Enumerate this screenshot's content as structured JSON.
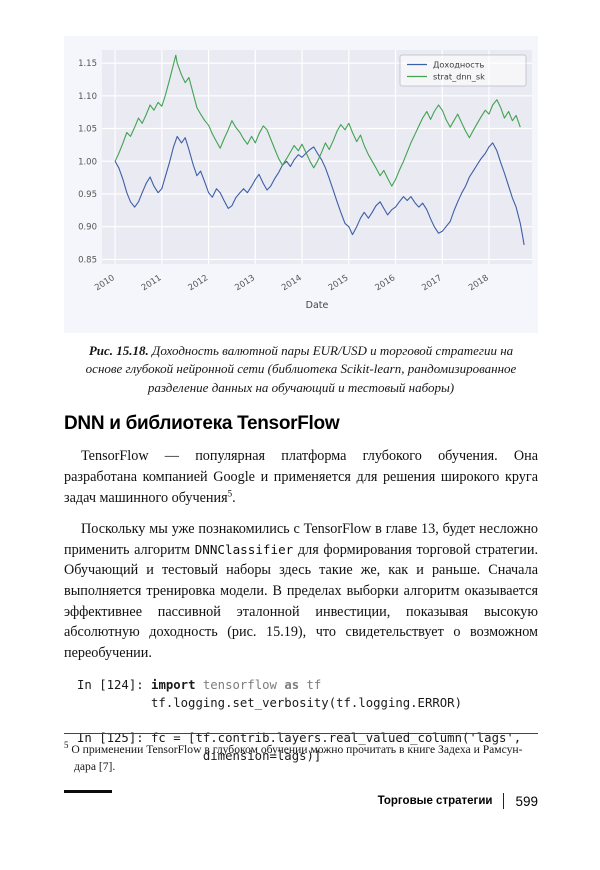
{
  "figure": {
    "caption": {
      "label": "Рис. 15.18.",
      "text": " Доходность валютной пары EUR/USD и торговой стратегии на основе глубокой нейронной сети (библиотека Scikit-learn, рандомизированное разделение данных на обучающий и тестовый наборы)"
    }
  },
  "chart_data": {
    "type": "line",
    "title": "",
    "xlabel": "Date",
    "ylabel": "",
    "xlim": [
      2010,
      2018.8
    ],
    "ylim": [
      0.85,
      1.15
    ],
    "yticks": [
      0.85,
      0.9,
      0.95,
      1.0,
      1.05,
      1.1,
      1.15
    ],
    "xticks": [
      2010,
      2011,
      2012,
      2013,
      2014,
      2015,
      2016,
      2017,
      2018
    ],
    "grid": true,
    "legend_position": "upper right",
    "plot_background": "#eaeaf2",
    "series": [
      {
        "name": "Доходность",
        "color": "#3d5fa6",
        "points": [
          [
            2010.0,
            1.0
          ],
          [
            2010.08,
            0.99
          ],
          [
            2010.17,
            0.972
          ],
          [
            2010.25,
            0.952
          ],
          [
            2010.33,
            0.938
          ],
          [
            2010.42,
            0.93
          ],
          [
            2010.5,
            0.938
          ],
          [
            2010.58,
            0.952
          ],
          [
            2010.67,
            0.967
          ],
          [
            2010.75,
            0.976
          ],
          [
            2010.83,
            0.962
          ],
          [
            2010.92,
            0.952
          ],
          [
            2011.0,
            0.958
          ],
          [
            2011.08,
            0.978
          ],
          [
            2011.17,
            1.0
          ],
          [
            2011.25,
            1.022
          ],
          [
            2011.33,
            1.038
          ],
          [
            2011.42,
            1.028
          ],
          [
            2011.5,
            1.036
          ],
          [
            2011.58,
            1.018
          ],
          [
            2011.67,
            0.995
          ],
          [
            2011.75,
            0.978
          ],
          [
            2011.83,
            0.985
          ],
          [
            2011.92,
            0.968
          ],
          [
            2012.0,
            0.952
          ],
          [
            2012.08,
            0.945
          ],
          [
            2012.17,
            0.958
          ],
          [
            2012.25,
            0.952
          ],
          [
            2012.33,
            0.94
          ],
          [
            2012.42,
            0.928
          ],
          [
            2012.5,
            0.932
          ],
          [
            2012.58,
            0.944
          ],
          [
            2012.67,
            0.952
          ],
          [
            2012.75,
            0.958
          ],
          [
            2012.83,
            0.952
          ],
          [
            2012.92,
            0.962
          ],
          [
            2013.0,
            0.972
          ],
          [
            2013.08,
            0.98
          ],
          [
            2013.17,
            0.966
          ],
          [
            2013.25,
            0.956
          ],
          [
            2013.33,
            0.962
          ],
          [
            2013.42,
            0.974
          ],
          [
            2013.5,
            0.983
          ],
          [
            2013.58,
            0.994
          ],
          [
            2013.67,
            1.0
          ],
          [
            2013.75,
            0.992
          ],
          [
            2013.83,
            1.002
          ],
          [
            2013.92,
            1.01
          ],
          [
            2014.0,
            1.006
          ],
          [
            2014.08,
            1.012
          ],
          [
            2014.17,
            1.018
          ],
          [
            2014.25,
            1.022
          ],
          [
            2014.33,
            1.012
          ],
          [
            2014.42,
            1.002
          ],
          [
            2014.5,
            0.99
          ],
          [
            2014.58,
            0.974
          ],
          [
            2014.67,
            0.955
          ],
          [
            2014.75,
            0.938
          ],
          [
            2014.83,
            0.922
          ],
          [
            2014.92,
            0.905
          ],
          [
            2015.0,
            0.9
          ],
          [
            2015.08,
            0.888
          ],
          [
            2015.17,
            0.9
          ],
          [
            2015.25,
            0.913
          ],
          [
            2015.33,
            0.922
          ],
          [
            2015.42,
            0.913
          ],
          [
            2015.5,
            0.922
          ],
          [
            2015.58,
            0.932
          ],
          [
            2015.67,
            0.938
          ],
          [
            2015.75,
            0.928
          ],
          [
            2015.83,
            0.918
          ],
          [
            2015.92,
            0.926
          ],
          [
            2016.0,
            0.93
          ],
          [
            2016.08,
            0.938
          ],
          [
            2016.17,
            0.946
          ],
          [
            2016.25,
            0.94
          ],
          [
            2016.33,
            0.946
          ],
          [
            2016.42,
            0.936
          ],
          [
            2016.5,
            0.93
          ],
          [
            2016.58,
            0.936
          ],
          [
            2016.67,
            0.926
          ],
          [
            2016.75,
            0.912
          ],
          [
            2016.83,
            0.9
          ],
          [
            2016.92,
            0.89
          ],
          [
            2017.0,
            0.893
          ],
          [
            2017.08,
            0.9
          ],
          [
            2017.17,
            0.908
          ],
          [
            2017.25,
            0.924
          ],
          [
            2017.33,
            0.938
          ],
          [
            2017.42,
            0.952
          ],
          [
            2017.5,
            0.962
          ],
          [
            2017.58,
            0.976
          ],
          [
            2017.67,
            0.986
          ],
          [
            2017.75,
            0.995
          ],
          [
            2017.83,
            1.004
          ],
          [
            2017.92,
            1.012
          ],
          [
            2018.0,
            1.022
          ],
          [
            2018.08,
            1.028
          ],
          [
            2018.17,
            1.016
          ],
          [
            2018.25,
            0.998
          ],
          [
            2018.33,
            0.982
          ],
          [
            2018.42,
            0.962
          ],
          [
            2018.5,
            0.944
          ],
          [
            2018.58,
            0.93
          ],
          [
            2018.67,
            0.905
          ],
          [
            2018.72,
            0.885
          ],
          [
            2018.75,
            0.872
          ]
        ]
      },
      {
        "name": "strat_dnn_sk",
        "color": "#41a351",
        "points": [
          [
            2010.0,
            1.0
          ],
          [
            2010.08,
            1.012
          ],
          [
            2010.17,
            1.028
          ],
          [
            2010.25,
            1.044
          ],
          [
            2010.33,
            1.038
          ],
          [
            2010.42,
            1.052
          ],
          [
            2010.5,
            1.066
          ],
          [
            2010.58,
            1.058
          ],
          [
            2010.67,
            1.072
          ],
          [
            2010.75,
            1.086
          ],
          [
            2010.83,
            1.078
          ],
          [
            2010.92,
            1.09
          ],
          [
            2011.0,
            1.084
          ],
          [
            2011.08,
            1.102
          ],
          [
            2011.17,
            1.126
          ],
          [
            2011.25,
            1.148
          ],
          [
            2011.3,
            1.162
          ],
          [
            2011.33,
            1.15
          ],
          [
            2011.42,
            1.132
          ],
          [
            2011.5,
            1.12
          ],
          [
            2011.58,
            1.128
          ],
          [
            2011.67,
            1.104
          ],
          [
            2011.75,
            1.082
          ],
          [
            2011.83,
            1.072
          ],
          [
            2011.92,
            1.062
          ],
          [
            2012.0,
            1.055
          ],
          [
            2012.08,
            1.042
          ],
          [
            2012.17,
            1.03
          ],
          [
            2012.25,
            1.02
          ],
          [
            2012.33,
            1.034
          ],
          [
            2012.42,
            1.048
          ],
          [
            2012.5,
            1.062
          ],
          [
            2012.58,
            1.052
          ],
          [
            2012.67,
            1.044
          ],
          [
            2012.75,
            1.034
          ],
          [
            2012.83,
            1.026
          ],
          [
            2012.92,
            1.038
          ],
          [
            2013.0,
            1.028
          ],
          [
            2013.08,
            1.042
          ],
          [
            2013.17,
            1.054
          ],
          [
            2013.25,
            1.048
          ],
          [
            2013.33,
            1.034
          ],
          [
            2013.42,
            1.018
          ],
          [
            2013.5,
            1.004
          ],
          [
            2013.58,
            0.994
          ],
          [
            2013.67,
            1.004
          ],
          [
            2013.75,
            1.014
          ],
          [
            2013.83,
            1.024
          ],
          [
            2013.92,
            1.016
          ],
          [
            2014.0,
            1.026
          ],
          [
            2014.08,
            1.014
          ],
          [
            2014.17,
            1.0
          ],
          [
            2014.25,
            0.99
          ],
          [
            2014.33,
            1.0
          ],
          [
            2014.42,
            1.014
          ],
          [
            2014.5,
            1.028
          ],
          [
            2014.58,
            1.018
          ],
          [
            2014.67,
            1.032
          ],
          [
            2014.75,
            1.046
          ],
          [
            2014.83,
            1.056
          ],
          [
            2014.92,
            1.048
          ],
          [
            2015.0,
            1.058
          ],
          [
            2015.08,
            1.044
          ],
          [
            2015.17,
            1.03
          ],
          [
            2015.25,
            1.04
          ],
          [
            2015.33,
            1.024
          ],
          [
            2015.42,
            1.01
          ],
          [
            2015.5,
            1.0
          ],
          [
            2015.58,
            0.99
          ],
          [
            2015.67,
            0.978
          ],
          [
            2015.75,
            0.986
          ],
          [
            2015.83,
            0.974
          ],
          [
            2015.92,
            0.962
          ],
          [
            2016.0,
            0.972
          ],
          [
            2016.08,
            0.986
          ],
          [
            2016.17,
            1.0
          ],
          [
            2016.25,
            1.014
          ],
          [
            2016.33,
            1.028
          ],
          [
            2016.42,
            1.042
          ],
          [
            2016.5,
            1.054
          ],
          [
            2016.58,
            1.066
          ],
          [
            2016.67,
            1.076
          ],
          [
            2016.75,
            1.064
          ],
          [
            2016.83,
            1.076
          ],
          [
            2016.92,
            1.086
          ],
          [
            2017.0,
            1.078
          ],
          [
            2017.08,
            1.064
          ],
          [
            2017.17,
            1.052
          ],
          [
            2017.25,
            1.062
          ],
          [
            2017.33,
            1.072
          ],
          [
            2017.42,
            1.058
          ],
          [
            2017.5,
            1.046
          ],
          [
            2017.58,
            1.036
          ],
          [
            2017.67,
            1.048
          ],
          [
            2017.75,
            1.058
          ],
          [
            2017.83,
            1.068
          ],
          [
            2017.92,
            1.078
          ],
          [
            2018.0,
            1.072
          ],
          [
            2018.08,
            1.086
          ],
          [
            2018.17,
            1.094
          ],
          [
            2018.25,
            1.082
          ],
          [
            2018.33,
            1.066
          ],
          [
            2018.42,
            1.076
          ],
          [
            2018.5,
            1.062
          ],
          [
            2018.58,
            1.07
          ],
          [
            2018.67,
            1.052
          ]
        ]
      }
    ]
  },
  "section": {
    "heading": "DNN и библиотека TensorFlow",
    "p1_text": "TensorFlow — популярная платформа глубокого обучения. Она разработана компанией Google и применяется для решения широкого круга задач машинного обучения",
    "p1_footnote_ref": "5",
    "p1_period": ".",
    "p2_before": "Поскольку мы уже познакомились с TensorFlow в главе 13, будет несложно применить алгоритм ",
    "p2_code": "DNNClassifier",
    "p2_after": " для формирования торговой стратегии. Обучающий и тестовый наборы здесь такие же, как и раньше. Сначала выполняется тренировка модели. В пределах выборки алгоритм оказывается эффективнее пассивной эталонной инвестиции, показывая высокую абсолютную доходность (рис. 15.19), что свидетельствует о возможном переобучении."
  },
  "code_blocks": [
    {
      "lines": [
        {
          "segments": [
            {
              "style": "plain",
              "text": "In [124]: "
            },
            {
              "style": "kw",
              "text": "import"
            },
            {
              "style": "dim",
              "text": " tensorflow "
            },
            {
              "style": "dimkw",
              "text": "as"
            },
            {
              "style": "dim",
              "text": " tf"
            }
          ]
        },
        {
          "segments": [
            {
              "style": "plain",
              "text": "          tf.logging.set_verbosity(tf.logging.ERROR)"
            }
          ]
        }
      ]
    },
    {
      "lines": [
        {
          "segments": [
            {
              "style": "plain",
              "text": "In [125]: fc = [tf.contrib.layers.real_valued_column('lags',"
            }
          ]
        },
        {
          "segments": [
            {
              "style": "plain",
              "text": "                 dimension=lags)]"
            }
          ]
        }
      ]
    }
  ],
  "footnote": {
    "marker": "5",
    "line1": " О применении TensorFlow в глубоком обучении можно прочитать в книге Задеха и Рамсун-",
    "line2": "дара [7]."
  },
  "page": {
    "footer": {
      "running_title": "Торговые стратегии",
      "page_number": "599"
    }
  }
}
